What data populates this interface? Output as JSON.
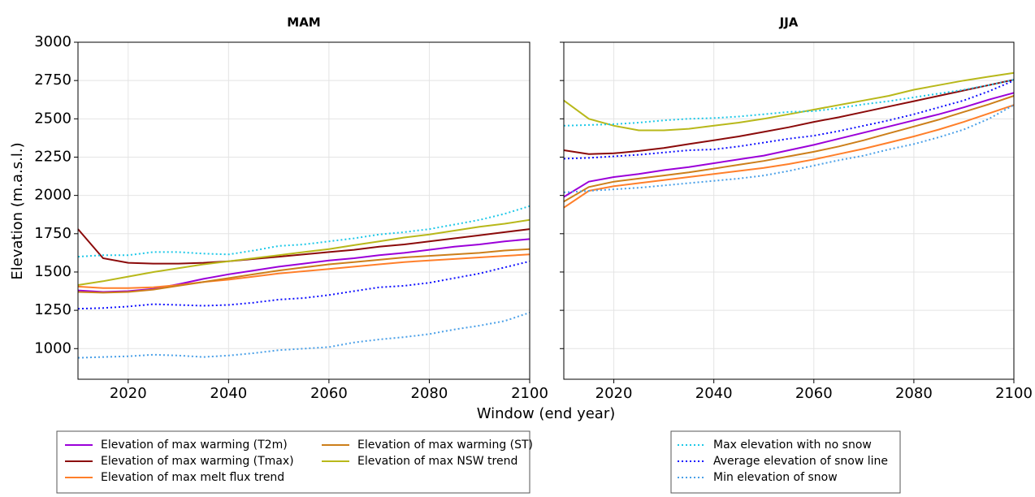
{
  "figure": {
    "ylabel": "Elevation (m.a.s.l.)",
    "xlabel": "Window (end year)"
  },
  "chart_data": [
    {
      "type": "line",
      "title": "MAM",
      "grid": true,
      "show_ytick_labels": true,
      "xlim": [
        2010,
        2100
      ],
      "ylim": [
        800,
        3000
      ],
      "xticks": [
        2020,
        2040,
        2060,
        2080,
        2100
      ],
      "yticks": [
        1000,
        1250,
        1500,
        1750,
        2000,
        2250,
        2500,
        2750,
        3000
      ],
      "x": [
        2010,
        2015,
        2020,
        2025,
        2030,
        2035,
        2040,
        2045,
        2050,
        2055,
        2060,
        2065,
        2070,
        2075,
        2080,
        2085,
        2090,
        2095,
        2100
      ],
      "series": [
        {
          "name": "Elevation of max warming (T2m)",
          "color": "#9b00d9",
          "style": "solid",
          "values": [
            1380,
            1370,
            1375,
            1390,
            1420,
            1455,
            1485,
            1510,
            1535,
            1555,
            1575,
            1590,
            1610,
            1625,
            1645,
            1665,
            1680,
            1700,
            1715
          ]
        },
        {
          "name": "Elevation of max warming (Tmax)",
          "color": "#8b0a0a",
          "style": "solid",
          "values": [
            1780,
            1590,
            1560,
            1555,
            1555,
            1560,
            1570,
            1585,
            1600,
            1615,
            1630,
            1645,
            1665,
            1680,
            1700,
            1720,
            1740,
            1760,
            1780
          ]
        },
        {
          "name": "Elevation of max melt flux trend",
          "color": "#ff7f2a",
          "style": "solid",
          "values": [
            1405,
            1395,
            1395,
            1400,
            1415,
            1435,
            1450,
            1470,
            1490,
            1505,
            1520,
            1535,
            1550,
            1565,
            1575,
            1585,
            1595,
            1605,
            1615
          ]
        },
        {
          "name": "Elevation of max warming (ST)",
          "color": "#cc7f1a",
          "style": "solid",
          "values": [
            1370,
            1365,
            1370,
            1385,
            1410,
            1435,
            1460,
            1485,
            1510,
            1530,
            1550,
            1565,
            1580,
            1595,
            1605,
            1615,
            1625,
            1640,
            1650
          ]
        },
        {
          "name": "Elevation of max NSW trend",
          "color": "#b8b81a",
          "style": "solid",
          "values": [
            1415,
            1440,
            1470,
            1500,
            1525,
            1550,
            1570,
            1590,
            1610,
            1630,
            1650,
            1675,
            1700,
            1725,
            1745,
            1770,
            1795,
            1815,
            1840
          ]
        },
        {
          "name": "Max elevation with no snow",
          "color": "#1ec8e8",
          "style": "dotted",
          "values": [
            1600,
            1610,
            1610,
            1630,
            1630,
            1620,
            1615,
            1640,
            1670,
            1680,
            1700,
            1720,
            1745,
            1760,
            1780,
            1810,
            1840,
            1880,
            1930
          ]
        },
        {
          "name": "Average elevation of snow line",
          "color": "#1010ff",
          "style": "dotted",
          "values": [
            1260,
            1265,
            1275,
            1290,
            1285,
            1280,
            1285,
            1300,
            1320,
            1330,
            1350,
            1375,
            1400,
            1410,
            1430,
            1460,
            1490,
            1530,
            1570
          ]
        },
        {
          "name": "Min elevation of snow",
          "color": "#4aa0e8",
          "style": "dotted",
          "values": [
            940,
            945,
            950,
            960,
            955,
            945,
            955,
            970,
            990,
            1000,
            1010,
            1040,
            1060,
            1075,
            1095,
            1125,
            1150,
            1180,
            1235
          ]
        }
      ]
    },
    {
      "type": "line",
      "title": "JJA",
      "grid": true,
      "show_ytick_labels": false,
      "xlim": [
        2010,
        2100
      ],
      "ylim": [
        800,
        3000
      ],
      "xticks": [
        2020,
        2040,
        2060,
        2080,
        2100
      ],
      "yticks": [
        1000,
        1250,
        1500,
        1750,
        2000,
        2250,
        2500,
        2750,
        3000
      ],
      "x": [
        2010,
        2015,
        2020,
        2025,
        2030,
        2035,
        2040,
        2045,
        2050,
        2055,
        2060,
        2065,
        2070,
        2075,
        2080,
        2085,
        2090,
        2095,
        2100
      ],
      "series": [
        {
          "color": "#9b00d9",
          "style": "solid",
          "values": [
            1990,
            2090,
            2120,
            2140,
            2165,
            2185,
            2210,
            2235,
            2260,
            2295,
            2330,
            2370,
            2410,
            2450,
            2490,
            2530,
            2575,
            2625,
            2670
          ]
        },
        {
          "color": "#8b0a0a",
          "style": "solid",
          "values": [
            2295,
            2270,
            2275,
            2290,
            2310,
            2335,
            2360,
            2385,
            2415,
            2445,
            2480,
            2510,
            2545,
            2580,
            2615,
            2650,
            2685,
            2720,
            2755
          ]
        },
        {
          "color": "#ff7f2a",
          "style": "solid",
          "values": [
            1920,
            2030,
            2060,
            2080,
            2100,
            2120,
            2140,
            2160,
            2180,
            2205,
            2235,
            2270,
            2305,
            2345,
            2385,
            2430,
            2480,
            2535,
            2590
          ]
        },
        {
          "color": "#cc7f1a",
          "style": "solid",
          "values": [
            1960,
            2055,
            2090,
            2110,
            2130,
            2150,
            2175,
            2200,
            2225,
            2255,
            2285,
            2320,
            2360,
            2405,
            2450,
            2495,
            2545,
            2595,
            2650
          ]
        },
        {
          "color": "#b8b81a",
          "style": "solid",
          "values": [
            2620,
            2500,
            2455,
            2425,
            2425,
            2435,
            2455,
            2475,
            2500,
            2530,
            2560,
            2590,
            2620,
            2650,
            2690,
            2720,
            2750,
            2775,
            2800
          ]
        },
        {
          "color": "#1ec8e8",
          "style": "dotted",
          "values": [
            2455,
            2460,
            2465,
            2475,
            2490,
            2500,
            2505,
            2515,
            2530,
            2545,
            2550,
            2570,
            2595,
            2615,
            2640,
            2665,
            2690,
            2720,
            2755
          ]
        },
        {
          "color": "#1010ff",
          "style": "dotted",
          "values": [
            2240,
            2245,
            2255,
            2265,
            2280,
            2295,
            2300,
            2320,
            2345,
            2370,
            2390,
            2420,
            2455,
            2490,
            2530,
            2575,
            2620,
            2680,
            2750
          ]
        },
        {
          "color": "#4aa0e8",
          "style": "dotted",
          "values": [
            2020,
            2030,
            2040,
            2050,
            2065,
            2080,
            2095,
            2110,
            2130,
            2160,
            2195,
            2230,
            2260,
            2300,
            2335,
            2380,
            2430,
            2500,
            2590
          ]
        }
      ]
    }
  ]
}
